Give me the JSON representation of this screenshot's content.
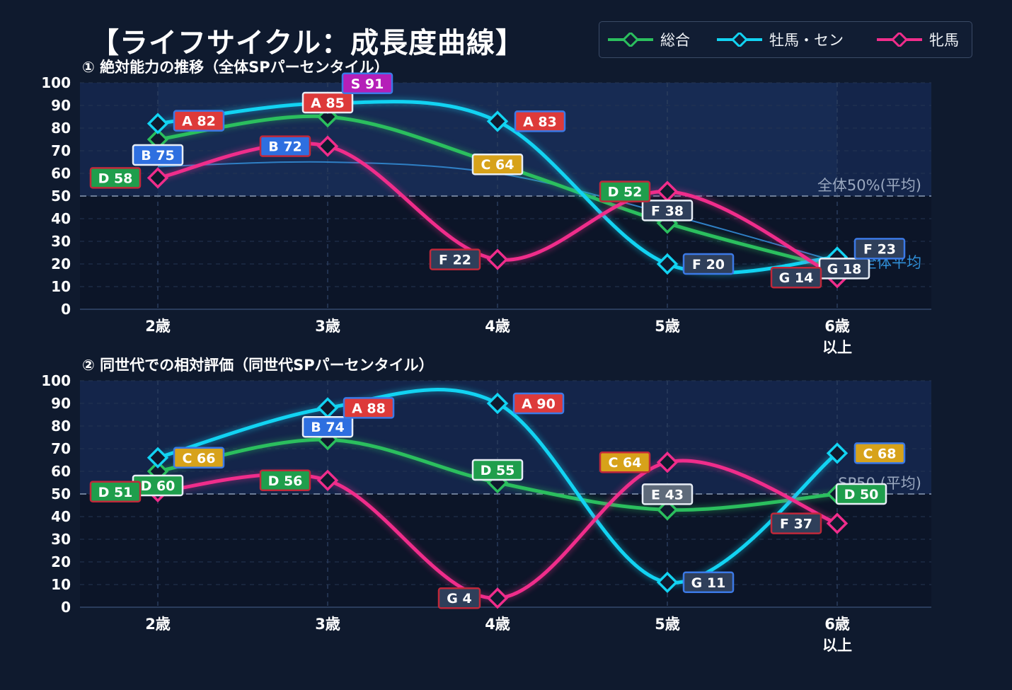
{
  "title": "【ライフサイクル：成長度曲線】",
  "legend": [
    {
      "name": "総合",
      "color": "#2bbf5e"
    },
    {
      "name": "牡馬・セン",
      "color": "#12d3f2"
    },
    {
      "name": "牝馬",
      "color": "#f02d8b"
    }
  ],
  "chart_data": [
    {
      "type": "line",
      "subtitle": "① 絶対能力の推移（全体SPパーセンタイル）",
      "categories": [
        "2歳",
        "3歳",
        "4歳",
        "5歳",
        "6歳\n以上"
      ],
      "ylim": [
        0,
        100
      ],
      "yticks": [
        0,
        10,
        20,
        30,
        40,
        50,
        60,
        70,
        80,
        90,
        100
      ],
      "grid": true,
      "reference_lines": [
        {
          "value": 50,
          "label": "全体50%(平均)"
        }
      ],
      "average_curve": {
        "values": [
          63,
          65,
          60,
          42,
          21
        ],
        "label": "全体平均"
      },
      "series": [
        {
          "name": "総合",
          "values": [
            75,
            85,
            64,
            38,
            18
          ],
          "labels": [
            "B 75",
            "A 85",
            "C 64",
            "F 38",
            "G 18"
          ]
        },
        {
          "name": "牡馬・セン",
          "values": [
            82,
            91,
            83,
            20,
            23
          ],
          "labels": [
            "A 82",
            "S 91",
            "A 83",
            "F 20",
            "F 23"
          ]
        },
        {
          "name": "牝馬",
          "values": [
            58,
            72,
            22,
            52,
            14
          ],
          "labels": [
            "D 58",
            "B 72",
            "F 22",
            "D 52",
            "G 14"
          ]
        }
      ]
    },
    {
      "type": "line",
      "subtitle": "② 同世代での相対評価（同世代SPパーセンタイル）",
      "categories": [
        "2歳",
        "3歳",
        "4歳",
        "5歳",
        "6歳\n以上"
      ],
      "ylim": [
        0,
        100
      ],
      "yticks": [
        0,
        10,
        20,
        30,
        40,
        50,
        60,
        70,
        80,
        90,
        100
      ],
      "grid": true,
      "reference_lines": [
        {
          "value": 50,
          "label": "SP50 (平均)"
        }
      ],
      "series": [
        {
          "name": "総合",
          "values": [
            60,
            74,
            55,
            43,
            50
          ],
          "labels": [
            "D 60",
            "B 74",
            "D 55",
            "E 43",
            "D 50"
          ]
        },
        {
          "name": "牡馬・セン",
          "values": [
            66,
            88,
            90,
            11,
            68
          ],
          "labels": [
            "C 66",
            "A 88",
            "A 90",
            "G 11",
            "C 68"
          ]
        },
        {
          "name": "牝馬",
          "values": [
            51,
            56,
            4,
            64,
            37
          ],
          "labels": [
            "D 51",
            "D 56",
            "G 4",
            "C 64",
            "F 37"
          ]
        }
      ]
    }
  ],
  "grade_colors": {
    "S": "#b51fb8",
    "A": "#dd3a3a",
    "B": "#2e6fe0",
    "C": "#d7a21a",
    "D": "#1f9e4c",
    "E": "#5e6a7a",
    "F": "#2f3f5a",
    "G": "#2f3f5a"
  }
}
